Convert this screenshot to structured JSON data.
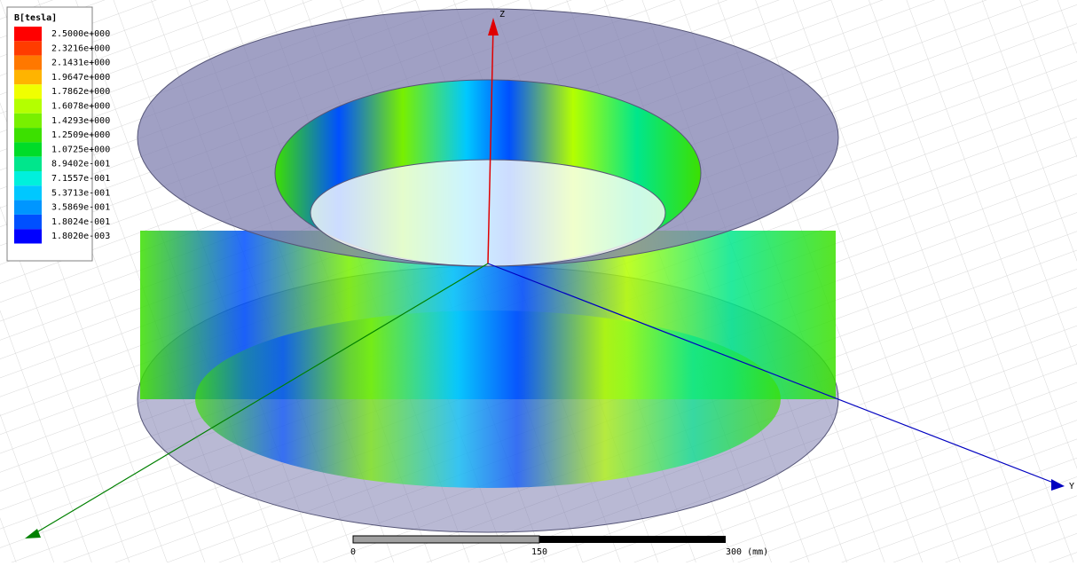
{
  "legend": {
    "title": "B[tesla]",
    "items": [
      {
        "label": "2.5000e+000",
        "color": "#ff0000"
      },
      {
        "label": "2.3216e+000",
        "color": "#ff3c00"
      },
      {
        "label": "2.1431e+000",
        "color": "#ff7800"
      },
      {
        "label": "1.9647e+000",
        "color": "#ffb400"
      },
      {
        "label": "1.7862e+000",
        "color": "#f0ff00"
      },
      {
        "label": "1.6078e+000",
        "color": "#b4ff00"
      },
      {
        "label": "1.4293e+000",
        "color": "#78f000"
      },
      {
        "label": "1.2509e+000",
        "color": "#3ce000"
      },
      {
        "label": "1.0725e+000",
        "color": "#00dc28"
      },
      {
        "label": "8.9402e-001",
        "color": "#00e68c"
      },
      {
        "label": "7.1557e-001",
        "color": "#00f0dc"
      },
      {
        "label": "5.3713e-001",
        "color": "#00c8ff"
      },
      {
        "label": "3.5869e-001",
        "color": "#0096ff"
      },
      {
        "label": "1.8024e-001",
        "color": "#0050ff"
      },
      {
        "label": "1.8020e-003",
        "color": "#0000ff"
      }
    ]
  },
  "axes": {
    "z": "Z",
    "y": "Y"
  },
  "scale_bar": {
    "labels": [
      "0",
      "150",
      "300 (mm)"
    ]
  }
}
